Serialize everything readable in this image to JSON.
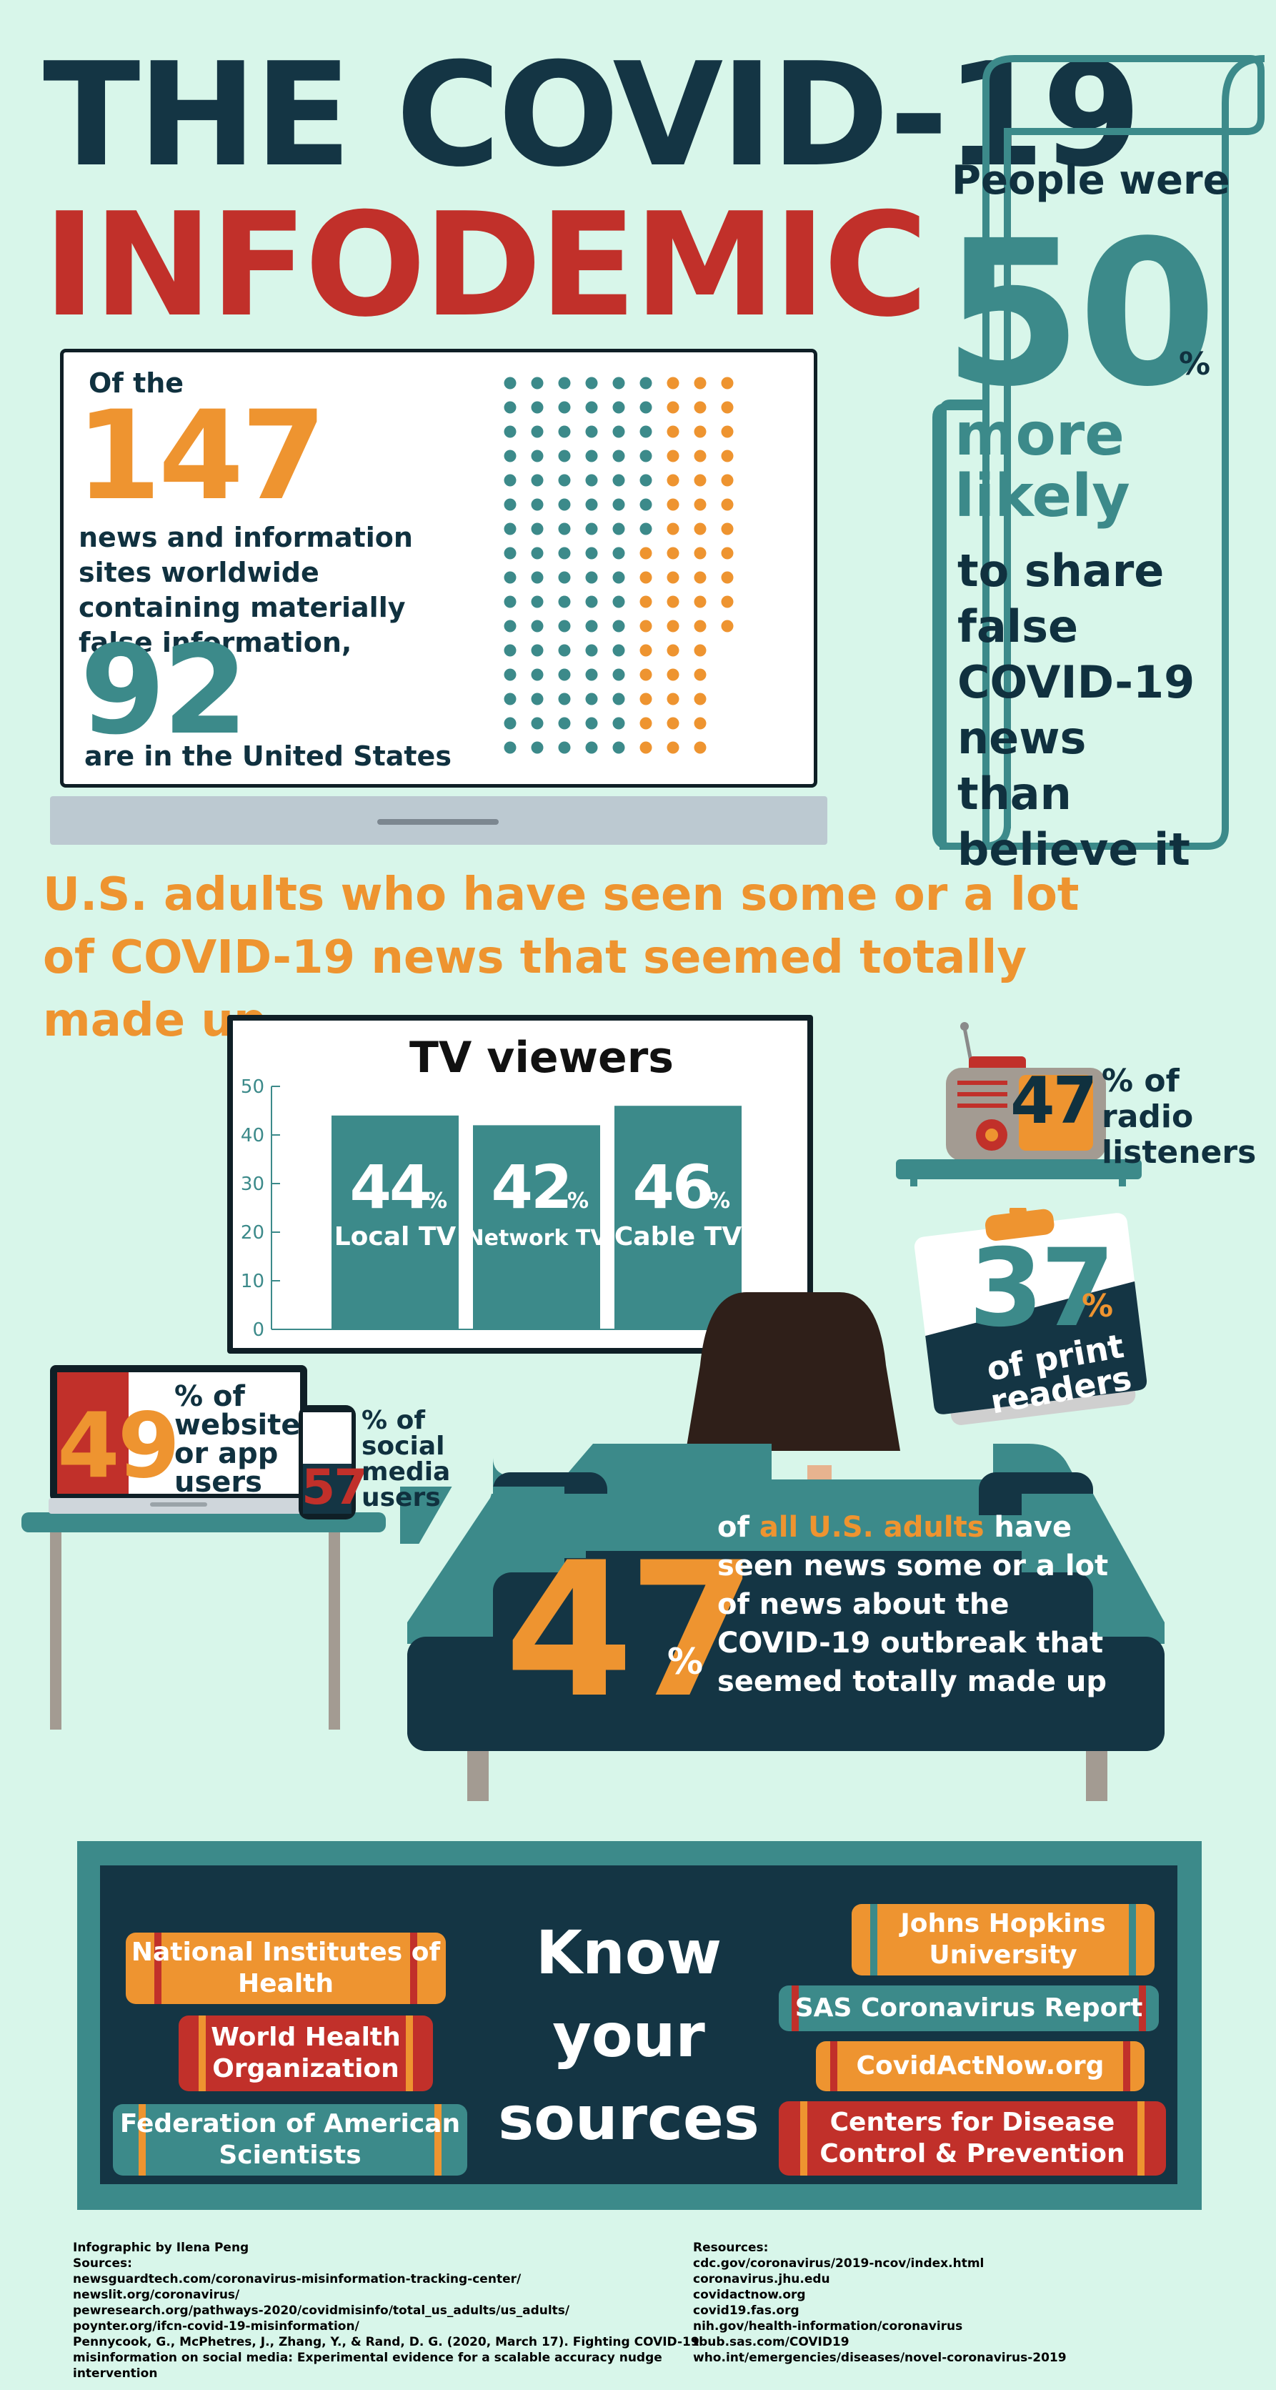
{
  "title": {
    "line1": "THE COVID-19",
    "line2": "INFODEMIC"
  },
  "sites_panel": {
    "intro": "Of the",
    "total": "147",
    "description": "news and information sites worldwide containing materially false information,",
    "us_count": "92",
    "us_label": "are in the United States",
    "dot_grid": {
      "total": 147,
      "highlighted": 92,
      "colors": {
        "us": "#3c8a8a",
        "other": "#ee9430"
      }
    }
  },
  "share_panel": {
    "lead": "People were",
    "value": "50",
    "unit": "%",
    "more": "more likely",
    "rest": "to share false COVID-19 news than believe it"
  },
  "subtitle": "U.S. adults who have seen some or a lot of COVID-19 news that seemed totally made up",
  "tv_panel": {
    "title": "TV viewers",
    "chart_data": {
      "type": "bar",
      "title": "TV viewers",
      "categories": [
        "Local TV",
        "Network TV",
        "Cable TV"
      ],
      "values": [
        44,
        42,
        46
      ],
      "value_labels": [
        "44",
        "42",
        "46"
      ],
      "unit": "%",
      "yticks": [
        "0",
        "10",
        "20",
        "30",
        "40",
        "50"
      ],
      "ylim": [
        0,
        50
      ],
      "grid": false,
      "colors": {
        "bar": "#3c8a8a",
        "axis": "#3c8a8a"
      }
    }
  },
  "radio": {
    "value": "47",
    "label": "% of radio listeners"
  },
  "print": {
    "value": "37",
    "unit": "%",
    "label": "of print readers"
  },
  "web": {
    "value": "49",
    "label": "% of website or app users"
  },
  "social": {
    "value": "57",
    "label": "% of social media users"
  },
  "all_adults": {
    "value": "47",
    "unit": "%",
    "pre": "of ",
    "highlight": "all U.S. adults",
    "rest": " have seen news some or a lot of news about the COVID-19 outbreak that seemed totally made up"
  },
  "sources_box": {
    "heading": [
      "Know",
      "your",
      "sources"
    ],
    "books": [
      "National Institutes of Health",
      "World Health Organization",
      "Federation of American Scientists",
      "Johns Hopkins University",
      "SAS Coronavirus Report",
      "CovidActNow.org",
      "Centers for Disease Control & Prevention"
    ]
  },
  "footer": {
    "credit": "Infographic by Ilena Peng",
    "sources_label": "Sources:",
    "sources": [
      "newsguardtech.com/coronavirus-misinformation-tracking-center/",
      "newslit.org/coronavirus/",
      "pewresearch.org/pathways-2020/covidmisinfo/total_us_adults/us_adults/",
      "poynter.org/ifcn-covid-19-misinformation/",
      "Pennycook, G., McPhetres, J., Zhang, Y., & Rand, D. G. (2020, March 17). Fighting COVID-19 misinformation on social media: Experimental evidence for a scalable accuracy nudge intervention"
    ],
    "resources_label": "Resources:",
    "resources": [
      "cdc.gov/coronavirus/2019-ncov/index.html",
      "coronavirus.jhu.edu",
      "covidactnow.org",
      "covid19.fas.org",
      "nih.gov/health-information/coronavirus",
      "tbub.sas.com/COVID19",
      "who.int/emergencies/diseases/novel-coronavirus-2019"
    ]
  },
  "colors": {
    "navy": "#143544",
    "teal": "#3c8a8a",
    "orange": "#ee9430",
    "red": "#c1302a",
    "background": "#d8f6ea"
  }
}
